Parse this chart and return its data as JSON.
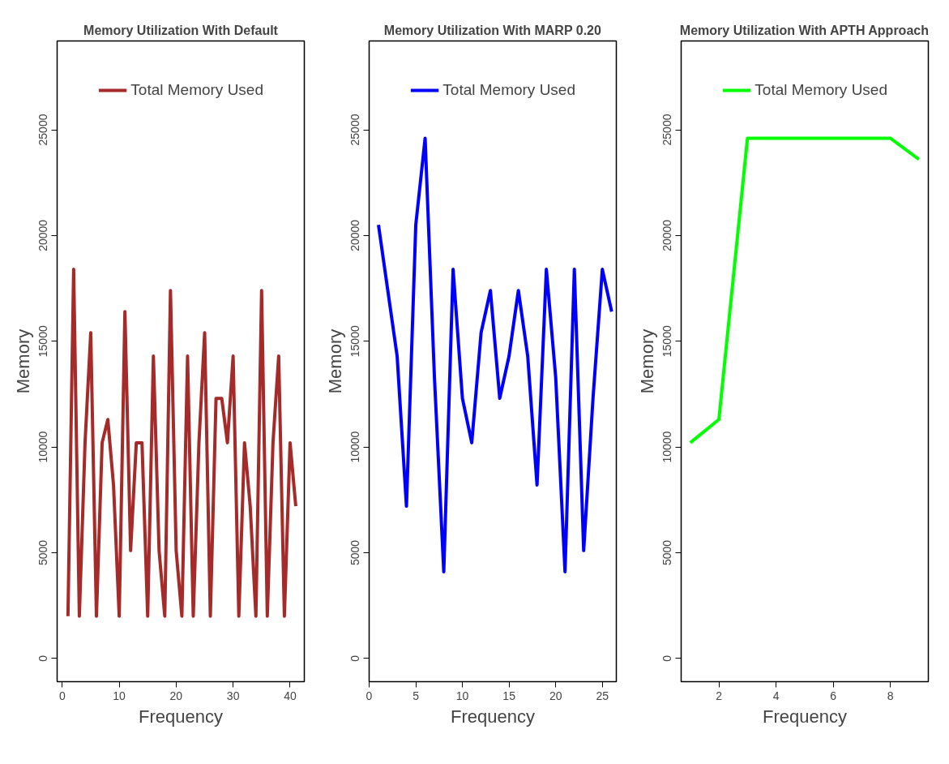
{
  "chart_data": [
    {
      "type": "line",
      "title": "Memory Utilization With Default",
      "xlabel": "Frequency",
      "ylabel": "Memory",
      "x": [
        1,
        2,
        3,
        4,
        5,
        6,
        7,
        8,
        9,
        10,
        11,
        12,
        13,
        14,
        15,
        16,
        17,
        18,
        19,
        20,
        21,
        22,
        23,
        24,
        25,
        26,
        27,
        28,
        29,
        30,
        31,
        32,
        33,
        34,
        35,
        36,
        37,
        38,
        39,
        40,
        41
      ],
      "series": [
        {
          "name": "Total Memory Used",
          "color": "#a52a2a",
          "values": [
            2000,
            18400,
            2000,
            10200,
            15400,
            2000,
            10200,
            11300,
            8200,
            2000,
            16400,
            5100,
            10200,
            10200,
            2000,
            14300,
            5100,
            2000,
            17400,
            5100,
            2000,
            14300,
            2000,
            10200,
            15400,
            2000,
            12300,
            12300,
            10200,
            14300,
            2000,
            10200,
            7200,
            2000,
            17400,
            2000,
            10200,
            14300,
            2000,
            10200,
            7200
          ]
        }
      ],
      "xlim": [
        -0.9,
        42.5
      ],
      "ylim": [
        -1100,
        29200
      ],
      "xticks": [
        0,
        10,
        20,
        30,
        40
      ],
      "yticks": [
        0,
        5000,
        10000,
        15000,
        20000,
        25000
      ],
      "grid": false,
      "legend": "top right"
    },
    {
      "type": "line",
      "title": "Memory Utilization With MARP 0.20",
      "xlabel": "Frequency",
      "ylabel": "Memory",
      "x": [
        1,
        2,
        3,
        4,
        5,
        6,
        7,
        8,
        9,
        10,
        11,
        12,
        13,
        14,
        15,
        16,
        17,
        18,
        19,
        20,
        21,
        22,
        23,
        24,
        25,
        26
      ],
      "series": [
        {
          "name": "Total Memory Used",
          "color": "#0000ff",
          "values": [
            20500,
            17400,
            14300,
            7200,
            20500,
            24600,
            13300,
            4100,
            18400,
            12300,
            10200,
            15400,
            17400,
            12300,
            14300,
            17400,
            14300,
            8200,
            18400,
            13300,
            4100,
            18400,
            5100,
            12300,
            18400,
            16400
          ]
        }
      ],
      "xlim": [
        0,
        26.5
      ],
      "ylim": [
        -1100,
        29200
      ],
      "xticks": [
        0,
        5,
        10,
        15,
        20,
        25
      ],
      "yticks": [
        0,
        5000,
        10000,
        15000,
        20000,
        25000
      ],
      "grid": false,
      "legend": "top right"
    },
    {
      "type": "line",
      "title": "Memory Utilization With APTH Approach",
      "xlabel": "Frequency",
      "ylabel": "Memory",
      "x": [
        1,
        2,
        3,
        4,
        5,
        6,
        7,
        8,
        9
      ],
      "series": [
        {
          "name": "Total Memory Used",
          "color": "#00ff00",
          "values": [
            10200,
            11300,
            24600,
            24600,
            24600,
            24600,
            24600,
            24600,
            23600
          ]
        }
      ],
      "xlim": [
        0.68,
        9.33
      ],
      "ylim": [
        -1100,
        29200
      ],
      "xticks": [
        2,
        4,
        6,
        8
      ],
      "yticks": [
        0,
        5000,
        10000,
        15000,
        20000,
        25000
      ],
      "grid": false,
      "legend": "top right"
    }
  ]
}
